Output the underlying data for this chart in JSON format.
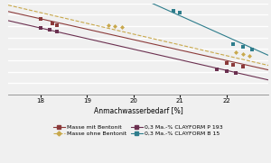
{
  "xlabel": "Anmachwasserbedarf [%]",
  "xlim": [
    17.3,
    22.9
  ],
  "ylim": [
    0,
    10
  ],
  "series": [
    {
      "label": "Masse mit Bentonit",
      "color": "#8B3A3A",
      "linestyle": "-",
      "marker": "s",
      "markersize": 2.5,
      "linewidth": 0.8,
      "points_x": [
        18.0,
        18.25,
        18.35,
        22.0,
        22.15,
        22.35
      ],
      "points_y": [
        8.3,
        7.8,
        7.6,
        3.5,
        3.3,
        3.1
      ],
      "line_x": [
        17.3,
        22.9
      ],
      "line_y": [
        9.1,
        2.7
      ]
    },
    {
      "label": "Masse ohne Bentonit",
      "color": "#C8A84B",
      "linestyle": "--",
      "marker": "D",
      "markersize": 2.5,
      "linewidth": 0.8,
      "points_x": [
        19.45,
        19.6,
        19.75,
        22.2,
        22.35,
        22.5
      ],
      "points_y": [
        7.6,
        7.5,
        7.4,
        4.6,
        4.4,
        4.2
      ],
      "line_x": [
        17.3,
        22.9
      ],
      "line_y": [
        9.8,
        3.2
      ]
    },
    {
      "label": "0,3 Ma.-% CLAYFORM P 193",
      "color": "#6B3050",
      "linestyle": "-",
      "marker": "s",
      "markersize": 2.5,
      "linewidth": 0.8,
      "points_x": [
        18.0,
        18.2,
        18.35,
        21.8,
        22.0,
        22.2
      ],
      "points_y": [
        7.3,
        7.1,
        6.9,
        2.8,
        2.6,
        2.4
      ],
      "line_x": [
        17.3,
        22.9
      ],
      "line_y": [
        8.1,
        1.6
      ]
    },
    {
      "label": "0,3 Ma.-% CLAYFORM B 15",
      "color": "#2E7D8C",
      "linestyle": "-",
      "marker": "s",
      "markersize": 2.5,
      "linewidth": 0.8,
      "points_x": [
        20.85,
        21.0,
        22.15,
        22.35,
        22.55
      ],
      "points_y": [
        9.2,
        9.0,
        5.5,
        5.2,
        4.9
      ],
      "line_x": [
        20.4,
        22.9
      ],
      "line_y": [
        10.0,
        4.3
      ]
    }
  ],
  "background_color": "#f0f0f0",
  "grid_color": "#ffffff",
  "xticks": [
    18,
    19,
    20,
    21,
    22
  ],
  "legend_fontsize": 4.5,
  "axis_fontsize": 5.5,
  "tick_fontsize": 5.0,
  "n_gridlines": 9
}
